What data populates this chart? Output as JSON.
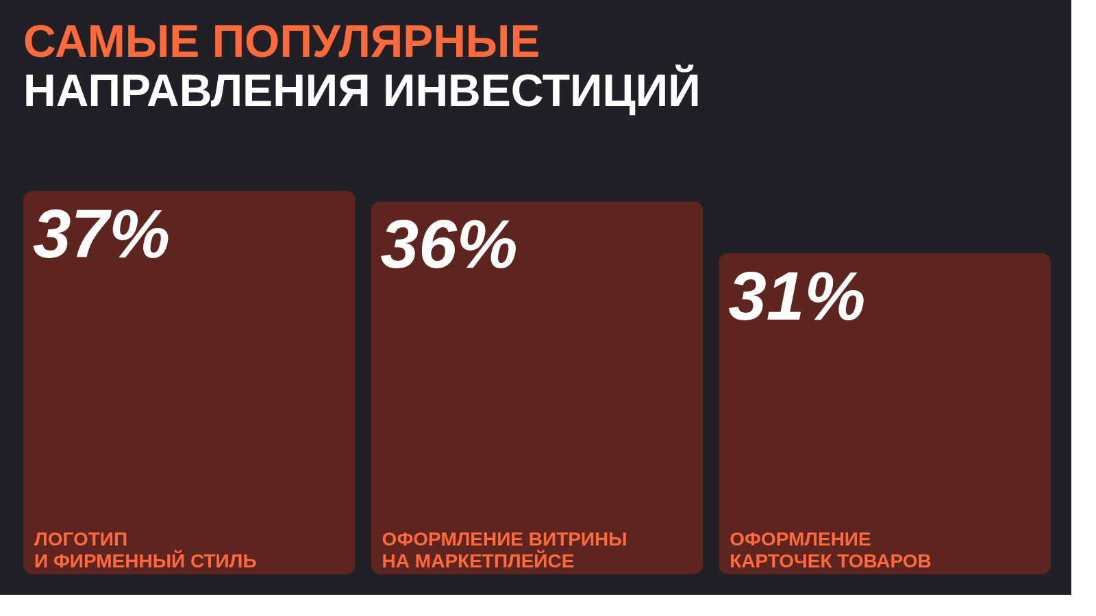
{
  "chart_data": {
    "type": "bar",
    "title": "САМЫЕ ПОПУЛЯРНЫЕ",
    "subtitle": "НАПРАВЛЕНИЯ ИНВЕСТИЦИЙ",
    "categories": [
      "ЛОГОТИП\nИ ФИРМЕННЫЙ СТИЛЬ",
      "ОФОРМЛЕНИЕ ВИТРИНЫ\nНА МАРКЕТПЛЕЙСЕ",
      "ОФОРМЛЕНИЕ\nКАРТОЧЕК ТОВАРОВ"
    ],
    "values": [
      37,
      36,
      31
    ],
    "value_labels": [
      "37%",
      "36%",
      "31%"
    ],
    "color": "#5e2420"
  }
}
